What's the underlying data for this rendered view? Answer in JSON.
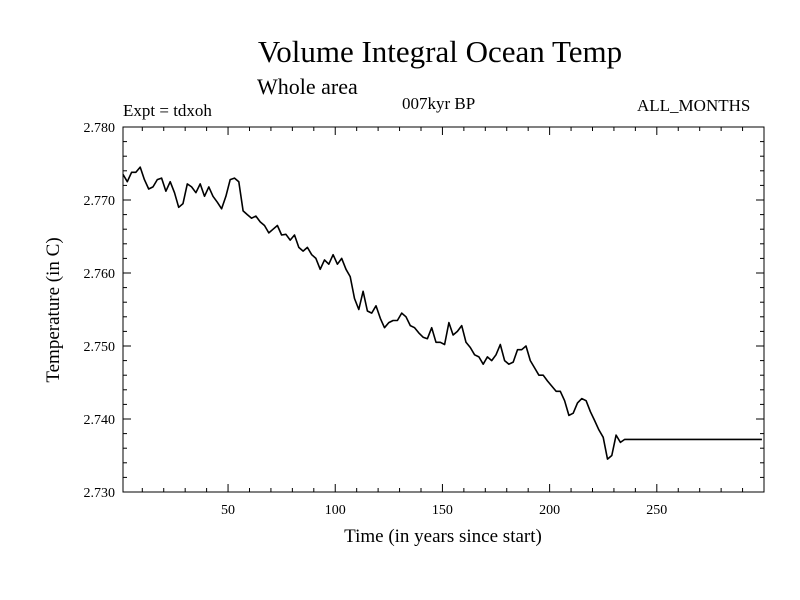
{
  "header": {
    "title": "Volume Integral Ocean Temp",
    "subtitle": "Whole area",
    "experiment": "Expt = tdxoh",
    "period": "007kyr BP",
    "months": "ALL_MONTHS"
  },
  "chart_data": {
    "type": "line",
    "title": "Volume Integral Ocean Temp",
    "subtitle": "Whole area",
    "xlabel": "Time (in years since start)",
    "ylabel": "Temperature (in C)",
    "xlim": [
      1,
      300
    ],
    "ylim": [
      2.73,
      2.78
    ],
    "x_ticks": [
      50,
      100,
      150,
      200,
      250
    ],
    "x_tick_labels": [
      "50",
      "100",
      "150",
      "200",
      "250"
    ],
    "y_ticks": [
      2.73,
      2.74,
      2.75,
      2.76,
      2.77,
      2.78
    ],
    "y_tick_labels": [
      "2.730",
      "2.740",
      "2.750",
      "2.760",
      "2.770",
      "2.780"
    ],
    "grid": false,
    "series": [
      {
        "name": "",
        "color": "#000000",
        "x": [
          1,
          3,
          5,
          7,
          9,
          11,
          13,
          15,
          17,
          19,
          21,
          23,
          25,
          27,
          29,
          31,
          33,
          35,
          37,
          39,
          41,
          43,
          45,
          47,
          49,
          51,
          53,
          55,
          57,
          59,
          61,
          63,
          65,
          67,
          69,
          71,
          73,
          75,
          77,
          79,
          81,
          83,
          85,
          87,
          89,
          91,
          93,
          95,
          97,
          99,
          101,
          103,
          105,
          107,
          109,
          111,
          113,
          115,
          117,
          119,
          121,
          123,
          125,
          127,
          129,
          131,
          133,
          135,
          137,
          139,
          141,
          143,
          145,
          147,
          149,
          151,
          153,
          155,
          157,
          159,
          161,
          163,
          165,
          167,
          169,
          171,
          173,
          175,
          177,
          179,
          181,
          183,
          185,
          187,
          189,
          191,
          193,
          195,
          197,
          199,
          201,
          203,
          205,
          207,
          209,
          211,
          213,
          215,
          217,
          219,
          221,
          223,
          225,
          227,
          229,
          231,
          233,
          235,
          237,
          239,
          241,
          243,
          245,
          247,
          249,
          251,
          253,
          255,
          257,
          259,
          261,
          263,
          265,
          267,
          269,
          271,
          273,
          275,
          277,
          279,
          281,
          283,
          285,
          287,
          289,
          291,
          293,
          295,
          297,
          299
        ],
        "values": [
          2.7735,
          2.7725,
          2.7738,
          2.7738,
          2.7745,
          2.7728,
          2.7715,
          2.7718,
          2.7728,
          2.773,
          2.7712,
          2.7725,
          2.771,
          2.769,
          2.7695,
          2.7722,
          2.7718,
          2.771,
          2.7722,
          2.7705,
          2.7718,
          2.7705,
          2.7697,
          2.7688,
          2.7705,
          2.7728,
          2.773,
          2.7725,
          2.7685,
          2.768,
          2.7675,
          2.7678,
          2.767,
          2.7665,
          2.7655,
          2.766,
          2.7665,
          2.7652,
          2.7653,
          2.7645,
          2.7652,
          2.7635,
          2.763,
          2.7635,
          2.7625,
          2.762,
          2.7605,
          2.7618,
          2.7612,
          2.7625,
          2.7612,
          2.762,
          2.7605,
          2.7595,
          2.7565,
          2.755,
          2.7575,
          2.7548,
          2.7545,
          2.7555,
          2.7538,
          2.7525,
          2.7532,
          2.7535,
          2.7535,
          2.7545,
          2.754,
          2.7528,
          2.7525,
          2.7518,
          2.7512,
          2.751,
          2.7525,
          2.7505,
          2.7505,
          2.7502,
          2.7532,
          2.7515,
          2.752,
          2.7528,
          2.7505,
          2.7498,
          2.7488,
          2.7485,
          2.7475,
          2.7485,
          2.748,
          2.7488,
          2.7502,
          2.748,
          2.7475,
          2.7478,
          2.7495,
          2.7495,
          2.75,
          2.748,
          2.747,
          2.746,
          2.746,
          2.7452,
          2.7445,
          2.7438,
          2.7438,
          2.7425,
          2.7405,
          2.7408,
          2.7422,
          2.7428,
          2.7425,
          2.741,
          2.7398,
          2.7385,
          2.7375,
          2.7345,
          2.735,
          2.7378,
          2.7368,
          2.7372,
          2.7372,
          2.7372,
          2.7372,
          2.7372,
          2.7372,
          2.7372,
          2.7372,
          2.7372,
          2.7372,
          2.7372,
          2.7372,
          2.7372,
          2.7372,
          2.7372,
          2.7372,
          2.7372,
          2.7372,
          2.7372,
          2.7372,
          2.7372,
          2.7372,
          2.7372,
          2.7372,
          2.7372,
          2.7372,
          2.7372,
          2.7372,
          2.7372,
          2.7372,
          2.7372,
          2.7372,
          2.7372
        ]
      }
    ]
  }
}
